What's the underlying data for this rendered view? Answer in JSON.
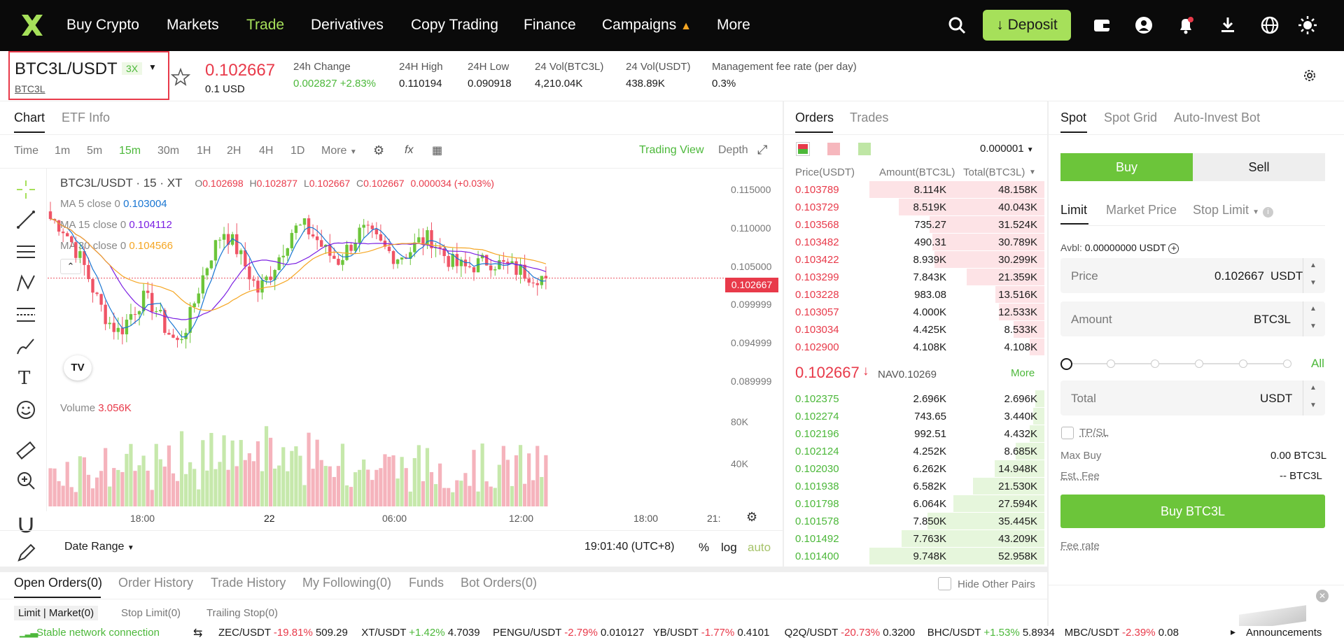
{
  "nav": {
    "items": [
      "Buy Crypto",
      "Markets",
      "Trade",
      "Derivatives",
      "Copy Trading",
      "Finance",
      "Campaigns",
      "More"
    ],
    "campaign_icon": "fire-icon",
    "deposit_label": "Deposit",
    "accent": "#a6e05a"
  },
  "ticker": {
    "pair": "BTC3L/USDT",
    "leverage": "3X",
    "base": "BTC3L",
    "price": "0.102667",
    "price_usd": "0.1 USD",
    "change_label": "24h Change",
    "change_value": "0.002827 +2.83%",
    "high_label": "24H High",
    "high_value": "0.110194",
    "low_label": "24H Low",
    "low_value": "0.090918",
    "vol1_label": "24 Vol(BTC3L)",
    "vol1_value": "4,210.04K",
    "vol2_label": "24 Vol(USDT)",
    "vol2_value": "438.89K",
    "fee_label": "Management fee rate (per day)",
    "fee_value": "0.3%"
  },
  "chart_panel": {
    "tabs": [
      "Chart",
      "ETF Info"
    ],
    "timeframes": [
      "Time",
      "1m",
      "5m",
      "15m",
      "30m",
      "1H",
      "2H",
      "4H",
      "1D",
      "More"
    ],
    "active_tf": "15m",
    "views": [
      "Trading View",
      "Depth"
    ],
    "legend_title": "BTC3L/USDT · 15 · XT",
    "ohlc": {
      "o": "0.102698",
      "h": "0.102877",
      "l": "0.102667",
      "c": "0.102667",
      "chg": "0.000034 (+0.03%)"
    },
    "ma5": {
      "label": "MA 5 close 0",
      "value": "0.103004"
    },
    "ma15": {
      "label": "MA 15 close 0",
      "value": "0.104112"
    },
    "ma30": {
      "label": "MA 30 close 0",
      "value": "0.104566"
    },
    "volume_label": "Volume",
    "volume_value": "3.056K",
    "price_axis": [
      "0.115000",
      "0.110000",
      "0.105000",
      "0.099999",
      "0.094999",
      "0.089999"
    ],
    "current_price_tag": "0.102667",
    "vol_axis": [
      "80K",
      "40K"
    ],
    "time_axis": [
      "18:00",
      "22",
      "06:00",
      "12:00",
      "18:00",
      "21:"
    ],
    "date_range": "Date Range",
    "clock": "19:01:40 (UTC+8)",
    "pct": "%",
    "log": "log",
    "auto": "auto"
  },
  "orderbook": {
    "tabs": [
      "Orders",
      "Trades"
    ],
    "precision": "0.000001",
    "headers": [
      "Price(USDT)",
      "Amount(BTC3L)",
      "Total(BTC3L)"
    ],
    "asks": [
      [
        "0.103789",
        "8.114K",
        "48.158K"
      ],
      [
        "0.103729",
        "8.519K",
        "40.043K"
      ],
      [
        "0.103568",
        "735.27",
        "31.524K"
      ],
      [
        "0.103482",
        "490.31",
        "30.789K"
      ],
      [
        "0.103422",
        "8.939K",
        "30.299K"
      ],
      [
        "0.103299",
        "7.843K",
        "21.359K"
      ],
      [
        "0.103228",
        "983.08",
        "13.516K"
      ],
      [
        "0.103057",
        "4.000K",
        "12.533K"
      ],
      [
        "0.103034",
        "4.425K",
        "8.533K"
      ],
      [
        "0.102900",
        "4.108K",
        "4.108K"
      ]
    ],
    "last_price": "0.102667",
    "nav": "NAV0.10269",
    "more": "More",
    "bids": [
      [
        "0.102375",
        "2.696K",
        "2.696K"
      ],
      [
        "0.102274",
        "743.65",
        "3.440K"
      ],
      [
        "0.102196",
        "992.51",
        "4.432K"
      ],
      [
        "0.102124",
        "4.252K",
        "8.685K"
      ],
      [
        "0.102030",
        "6.262K",
        "14.948K"
      ],
      [
        "0.101938",
        "6.582K",
        "21.530K"
      ],
      [
        "0.101798",
        "6.064K",
        "27.594K"
      ],
      [
        "0.101578",
        "7.850K",
        "35.445K"
      ],
      [
        "0.101492",
        "7.763K",
        "43.209K"
      ],
      [
        "0.101400",
        "9.748K",
        "52.958K"
      ]
    ]
  },
  "trade": {
    "tabs": [
      "Spot",
      "Spot Grid",
      "Auto-Invest Bot"
    ],
    "buy": "Buy",
    "sell": "Sell",
    "order_types": [
      "Limit",
      "Market Price",
      "Stop Limit"
    ],
    "avbl_label": "Avbl:",
    "avbl_value": "0.00000000 USDT",
    "price_label": "Price",
    "price_value": "0.102667",
    "price_unit": "USDT",
    "amount_label": "Amount",
    "amount_unit": "BTC3L",
    "all": "All",
    "total_label": "Total",
    "total_unit": "USDT",
    "tpsl": "TP/SL",
    "maxbuy_label": "Max Buy",
    "maxbuy_value": "0.00 BTC3L",
    "fee_label": "Est. Fee",
    "fee_value": "-- BTC3L",
    "submit": "Buy BTC3L",
    "fee_rate": "Fee rate"
  },
  "bottom": {
    "tabs": [
      "Open Orders(0)",
      "Order History",
      "Trade History",
      "My Following(0)",
      "Funds",
      "Bot Orders(0)"
    ],
    "hide_pairs": "Hide Other Pairs",
    "subtabs": [
      "Limit | Market(0)",
      "Stop Limit(0)",
      "Trailing Stop(0)"
    ]
  },
  "status": {
    "connection": "Stable network connection",
    "tickers": [
      {
        "pair": "ZEC/USDT",
        "chg": "-19.81%",
        "price": "509.29",
        "up": false
      },
      {
        "pair": "XT/USDT",
        "chg": "+1.42%",
        "price": "4.7039",
        "up": true
      },
      {
        "pair": "PENGU/USDT",
        "chg": "-2.79%",
        "price": "0.010127",
        "up": false
      },
      {
        "pair": "YB/USDT",
        "chg": "-1.77%",
        "price": "0.4101",
        "up": false
      },
      {
        "pair": "Q2Q/USDT",
        "chg": "-20.73%",
        "price": "0.3200",
        "up": false
      },
      {
        "pair": "BHC/USDT",
        "chg": "+1.53%",
        "price": "5.8934",
        "up": true
      },
      {
        "pair": "MBC/USDT",
        "chg": "-2.39%",
        "price": "0.08",
        "up": false
      }
    ],
    "announcements": "Announcements"
  }
}
